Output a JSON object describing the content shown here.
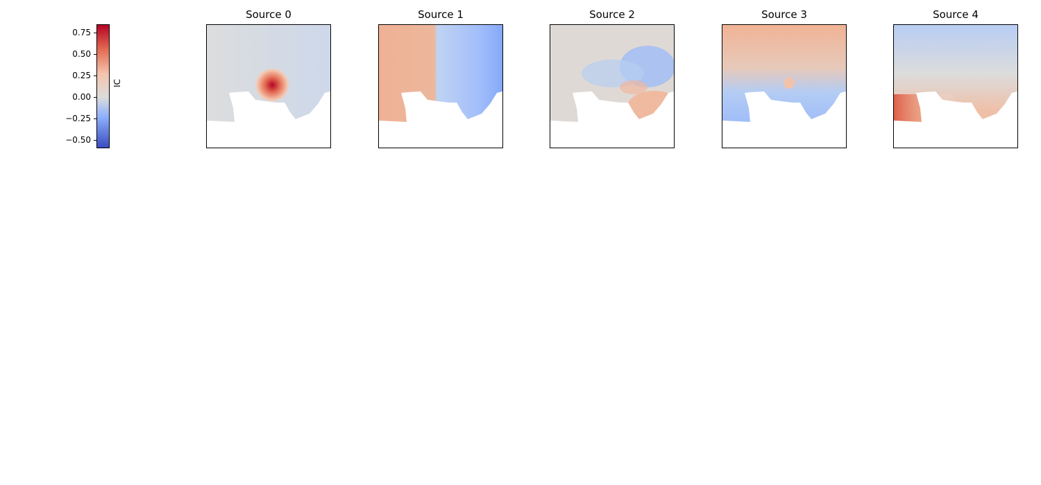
{
  "chart_data": {
    "type": "heatmap",
    "colormap": "coolwarm",
    "colorbar": {
      "label": "IC",
      "ticks": [
        "0.75",
        "0.50",
        "0.25",
        "0.00",
        "−0.25",
        "−0.50"
      ],
      "tick_values": [
        0.75,
        0.5,
        0.25,
        0.0,
        -0.25,
        -0.5
      ],
      "range": [
        -0.6,
        0.85
      ]
    },
    "panels": [
      {
        "title": "Source 0",
        "description_key": "localized positive hotspot near center"
      },
      {
        "title": "Source 1",
        "description_key": "positive west, negative east"
      },
      {
        "title": "Source 2",
        "description_key": "mixed, negative north-east, positive south-east"
      },
      {
        "title": "Source 3",
        "description_key": "positive north, negative south"
      },
      {
        "title": "Source 4",
        "description_key": "weak negative north, positive south-west"
      }
    ]
  }
}
